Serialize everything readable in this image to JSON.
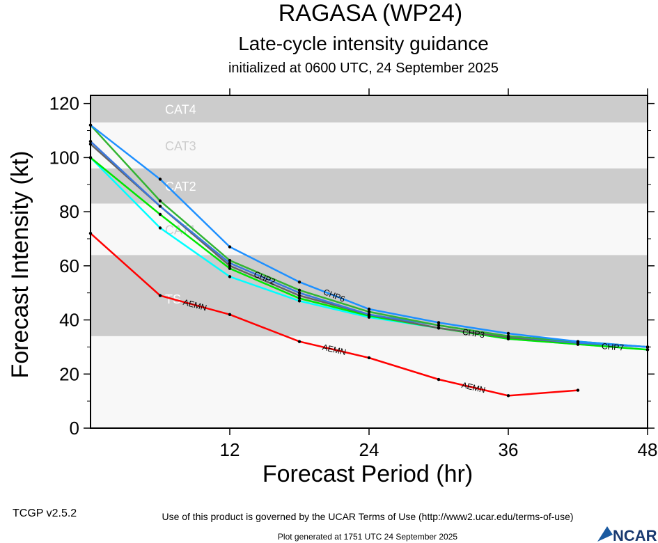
{
  "chart_data": {
    "type": "line",
    "title": "RAGASA (WP24)",
    "subtitle": "Late-cycle intensity guidance",
    "subtitle2": "initialized at 0600 UTC, 24 September 2025",
    "xlabel": "Forecast Period (hr)",
    "ylabel": "Forecast Intensity (kt)",
    "xlim": [
      0,
      48
    ],
    "ylim": [
      0,
      123
    ],
    "xticks": [
      12,
      24,
      36,
      48
    ],
    "yticks": [
      0,
      20,
      40,
      60,
      80,
      100,
      120
    ],
    "grid": false,
    "bands": [
      {
        "label": "TS",
        "range": [
          34,
          64
        ],
        "color": "#cccccc"
      },
      {
        "label": "CAT1",
        "range": [
          64,
          83
        ],
        "color": "#f8f8f8"
      },
      {
        "label": "CAT2",
        "range": [
          83,
          96
        ],
        "color": "#cccccc"
      },
      {
        "label": "CAT3",
        "range": [
          96,
          113
        ],
        "color": "#f8f8f8"
      },
      {
        "label": "CAT4",
        "range": [
          113,
          123
        ],
        "color": "#cccccc"
      }
    ],
    "x": [
      0,
      6,
      12,
      18,
      24,
      30,
      36,
      42,
      48
    ],
    "series": [
      {
        "name": "CHP6",
        "color": "#1e90ff",
        "values": [
          112,
          92,
          67,
          54,
          44,
          39,
          35,
          32,
          30
        ]
      },
      {
        "name": "",
        "color": "#32b432",
        "values": [
          112,
          84,
          62,
          51,
          43,
          38,
          34,
          32,
          30
        ]
      },
      {
        "name": "CHP2",
        "color": "#3c78dc",
        "values": [
          106,
          82,
          61,
          50,
          42,
          38,
          34,
          31.5,
          30
        ]
      },
      {
        "name": "",
        "color": "#646464",
        "values": [
          105,
          82,
          60,
          49,
          42,
          37,
          33.5,
          31.5,
          30
        ]
      },
      {
        "name": "CHP3",
        "color": "#00e600",
        "values": [
          100,
          79,
          59,
          48,
          41.5,
          37,
          33,
          31,
          29
        ]
      },
      {
        "name": "CHP7",
        "color": "#00ffff",
        "values": [
          100,
          74,
          56,
          47,
          41,
          37,
          33,
          31,
          29
        ]
      },
      {
        "name": "AEMN",
        "color": "#ff0000",
        "values": [
          72,
          49,
          42,
          32,
          26,
          18,
          12,
          14,
          null
        ]
      }
    ]
  },
  "footer": {
    "version": "TCGP v2.5.2",
    "terms": "Use of this product is governed by the UCAR Terms of Use (http://www2.ucar.edu/terms-of-use)",
    "generated": "Plot generated at 1751 UTC   24 September 2025",
    "logo": "NCAR"
  }
}
